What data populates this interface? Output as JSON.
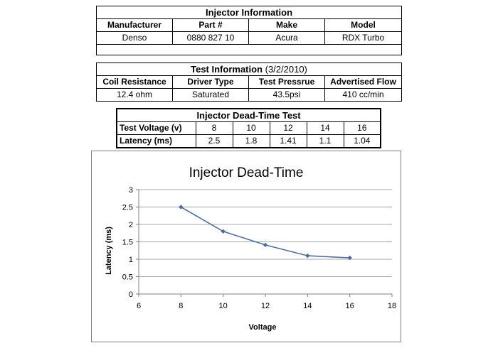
{
  "injector_info": {
    "title": "Injector Information",
    "headers": [
      "Manufacturer",
      "Part #",
      "Make",
      "Model"
    ],
    "values": [
      "Denso",
      "0880 827 10",
      "Acura",
      "RDX Turbo"
    ]
  },
  "test_info": {
    "title": "Test Information",
    "date": "(3/2/2010)",
    "headers": [
      "Coil Resistance",
      "Driver Type",
      "Test Pressrue",
      "Advertised Flow"
    ],
    "values": [
      "12.4 ohm",
      "Saturated",
      "43.5psi",
      "410 cc/min"
    ]
  },
  "dead_time_table": {
    "title": "Injector Dead-Time Test",
    "voltage_label": "Test Voltage (v)",
    "latency_label": "Latency (ms)",
    "voltages": [
      "8",
      "10",
      "12",
      "14",
      "16"
    ],
    "latencies": [
      "2.5",
      "1.8",
      "1.41",
      "1.1",
      "1.04"
    ]
  },
  "chart_data": {
    "type": "line",
    "title": "Injector Dead-Time",
    "xlabel": "Voltage",
    "ylabel": "Latency (ms)",
    "x": [
      8,
      10,
      12,
      14,
      16
    ],
    "y": [
      2.5,
      1.8,
      1.41,
      1.1,
      1.04
    ],
    "xlim": [
      6,
      18
    ],
    "ylim": [
      0,
      3
    ],
    "xticks": [
      6,
      8,
      10,
      12,
      14,
      16,
      18
    ],
    "yticks": [
      0,
      0.5,
      1,
      1.5,
      2,
      2.5,
      3
    ],
    "xtick_labels": [
      "6",
      "8",
      "10",
      "12",
      "14",
      "16",
      "18"
    ],
    "ytick_labels": [
      "0",
      "0.5",
      "1",
      "1.5",
      "2",
      "2.5",
      "3"
    ],
    "grid": "horizontal",
    "line_color": "#4f6fa8",
    "marker_color": "#4a6aa5"
  }
}
